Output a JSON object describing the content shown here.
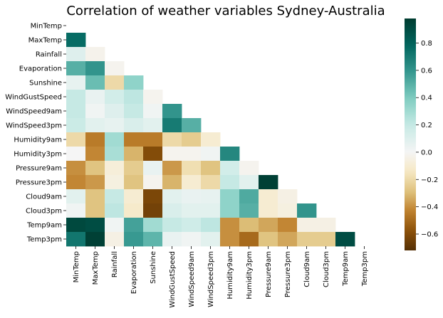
{
  "chart_data": {
    "type": "heatmap",
    "title": "Correlation of weather variables Sydney-Australia",
    "variables": [
      "MinTemp",
      "MaxTemp",
      "Rainfall",
      "Evaporation",
      "Sunshine",
      "WindGustSpeed",
      "WindSpeed9am",
      "WindSpeed3pm",
      "Humidity9am",
      "Humidity3pm",
      "Pressure9am",
      "Pressure3pm",
      "Cloud9am",
      "Cloud3pm",
      "Temp9am",
      "Temp3pm"
    ],
    "mask": "upper-triangle-including-diagonal",
    "values": [
      [],
      [
        0.76
      ],
      [
        0.1,
        -0.03
      ],
      [
        0.5,
        0.6,
        -0.02
      ],
      [
        0.06,
        0.45,
        -0.2,
        0.35
      ],
      [
        0.2,
        0.05,
        0.15,
        0.22,
        -0.02
      ],
      [
        0.2,
        0.02,
        0.1,
        0.2,
        0.02,
        0.6
      ],
      [
        0.18,
        0.08,
        0.06,
        0.12,
        0.08,
        0.7,
        0.5
      ],
      [
        -0.2,
        -0.45,
        0.3,
        -0.45,
        -0.45,
        -0.2,
        -0.25,
        -0.1
      ],
      [
        0.0,
        -0.42,
        0.28,
        -0.32,
        -0.6,
        -0.02,
        -0.02,
        0.02,
        0.65
      ],
      [
        -0.4,
        -0.28,
        -0.08,
        -0.25,
        0.05,
        -0.38,
        -0.18,
        -0.28,
        0.15,
        -0.02
      ],
      [
        -0.42,
        -0.38,
        -0.06,
        -0.28,
        -0.02,
        -0.32,
        -0.1,
        -0.2,
        0.2,
        0.08,
        0.96
      ],
      [
        0.08,
        -0.28,
        0.2,
        -0.1,
        -0.62,
        0.08,
        0.05,
        0.06,
        0.35,
        0.52,
        -0.1,
        -0.05
      ],
      [
        0.02,
        -0.28,
        0.22,
        -0.12,
        -0.64,
        0.12,
        0.08,
        0.08,
        0.35,
        0.5,
        -0.1,
        -0.06,
        0.6
      ],
      [
        0.92,
        0.9,
        0.02,
        0.55,
        0.3,
        0.2,
        0.16,
        0.22,
        -0.4,
        -0.3,
        -0.35,
        -0.42,
        -0.05,
        -0.05
      ],
      [
        0.72,
        0.96,
        -0.05,
        0.58,
        0.48,
        0.05,
        0.02,
        0.08,
        -0.4,
        -0.5,
        -0.28,
        -0.35,
        -0.25,
        -0.25,
        0.9
      ]
    ],
    "colorbar": {
      "vmin": -0.72,
      "vmax": 0.98,
      "ticks": [
        -0.6,
        -0.4,
        -0.2,
        0.0,
        0.2,
        0.4,
        0.6,
        0.8
      ],
      "tick_labels": [
        "−0.6",
        "−0.4",
        "−0.2",
        "0.0",
        "0.2",
        "0.4",
        "0.6",
        "0.8"
      ],
      "colormap": "BrBG",
      "colormap_stops": [
        "#543005",
        "#8c510a",
        "#bf812d",
        "#dfc27d",
        "#f6e8c3",
        "#f5f5f5",
        "#c7eae5",
        "#80cdc1",
        "#35978f",
        "#01665e",
        "#003c30"
      ]
    }
  }
}
